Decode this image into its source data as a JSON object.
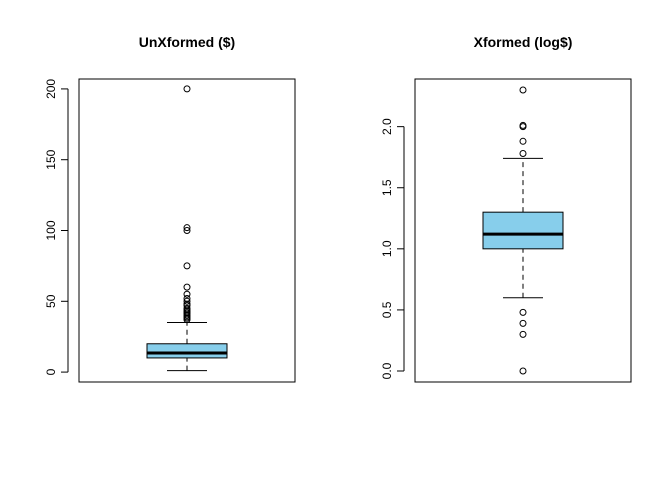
{
  "chart_data": [
    {
      "type": "boxplot",
      "title": "UnXformed ($)",
      "ylim": [
        -7,
        207
      ],
      "yticks": [
        0,
        50,
        100,
        150,
        200
      ],
      "ytick_labels": [
        "0",
        "50",
        "100",
        "150",
        "200"
      ],
      "box_color": "#87CEEB",
      "stats": {
        "whisker_low": 1,
        "q1": 10,
        "median": 13.5,
        "q3": 20,
        "whisker_high": 35
      },
      "outliers": [
        37,
        38,
        39,
        40,
        41,
        42,
        43,
        44,
        45,
        47,
        48,
        50,
        52,
        55,
        60,
        75,
        100,
        102,
        200
      ]
    },
    {
      "type": "boxplot",
      "title": "Xformed (log$)",
      "ylim": [
        -0.09,
        2.39
      ],
      "yticks": [
        0.0,
        0.5,
        1.0,
        1.5,
        2.0
      ],
      "ytick_labels": [
        "0.0",
        "0.5",
        "1.0",
        "1.5",
        "2.0"
      ],
      "box_color": "#87CEEB",
      "stats": {
        "whisker_low": 0.6,
        "q1": 1.0,
        "median": 1.12,
        "q3": 1.3,
        "whisker_high": 1.74
      },
      "outliers": [
        0.0,
        0.3,
        0.39,
        0.48,
        1.78,
        1.88,
        2.0,
        2.01,
        2.3
      ]
    }
  ]
}
